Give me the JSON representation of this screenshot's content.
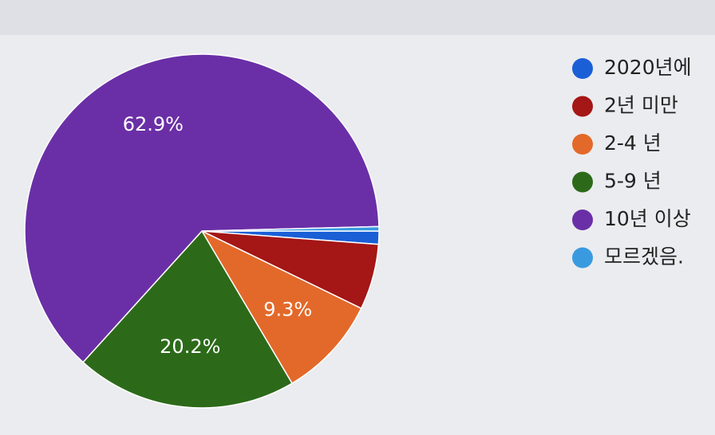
{
  "chart_data": {
    "type": "pie",
    "categories": [
      "2020년에",
      "2년 미만",
      "2-4 년",
      "5-9 년",
      "10년 이상",
      "모르겠음."
    ],
    "values": [
      1.2,
      6.0,
      9.3,
      20.2,
      62.9,
      0.4
    ],
    "value_labels": [
      null,
      null,
      "9.3%",
      "20.2%",
      "62.9%",
      null
    ],
    "colors": [
      "#1a5fd6",
      "#a51616",
      "#e3692a",
      "#2c6a1a",
      "#6a2fa6",
      "#3a9ae0"
    ],
    "legend": "right"
  }
}
